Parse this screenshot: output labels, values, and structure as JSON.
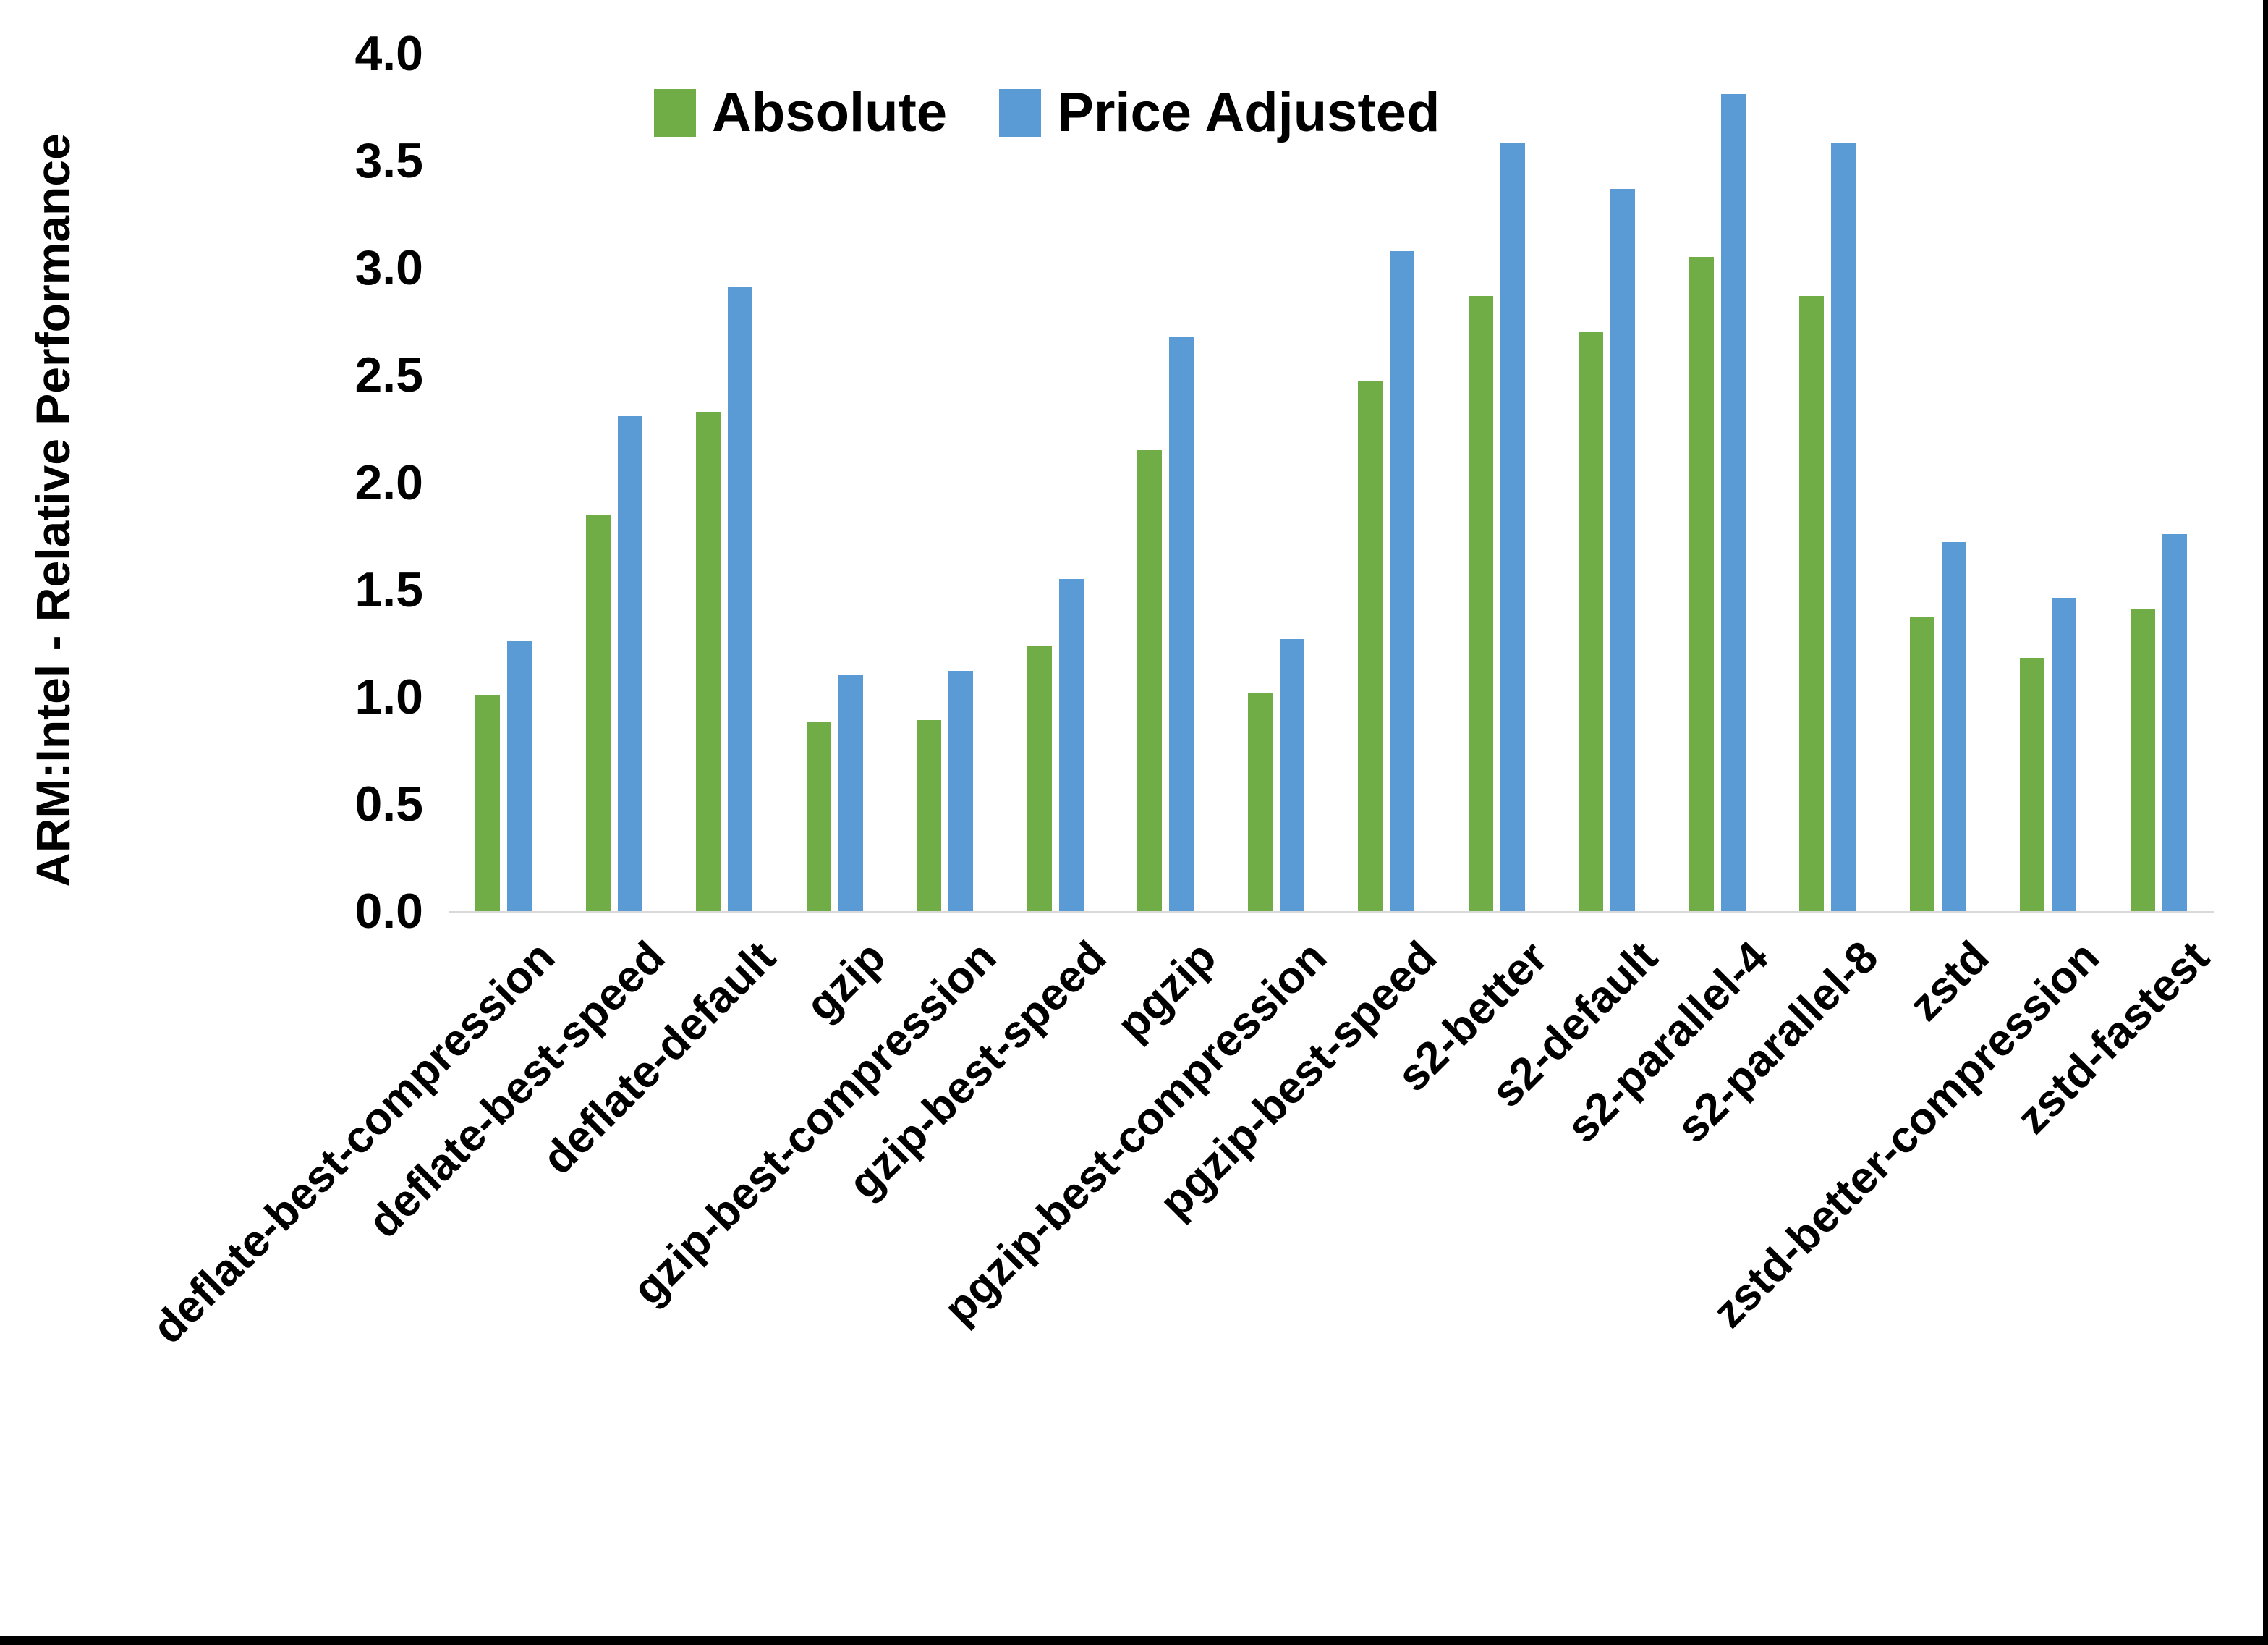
{
  "y_axis": {
    "title": "ARM:Intel - Relative Performance",
    "tick_labels": [
      "0.0",
      "0.5",
      "1.0",
      "1.5",
      "2.0",
      "2.5",
      "3.0",
      "3.5",
      "4.0"
    ]
  },
  "legend": {
    "items": [
      {
        "label": "Absolute",
        "color": "#70AD47"
      },
      {
        "label": "Price Adjusted",
        "color": "#5B9BD5"
      }
    ]
  },
  "colors": {
    "absolute_green": "#70AD47",
    "price_adjusted_blue": "#5B9BD5",
    "axis_line": "#D9D9D9",
    "text": "#000000",
    "frame": "#000000"
  },
  "chart_data": {
    "type": "bar",
    "title": "",
    "xlabel": "",
    "ylabel": "ARM:Intel - Relative Performance",
    "ylim": [
      0,
      4
    ],
    "ytick_step": 0.5,
    "grid": false,
    "legend_position": "top-center",
    "categories": [
      "deflate-best-compression",
      "deflate-best-speed",
      "deflate-default",
      "gzip",
      "gzip-best-compression",
      "gzip-best-speed",
      "pgzip",
      "pgzip-best-compression",
      "pgzip-best-speed",
      "s2-better",
      "s2-default",
      "s2-parallel-4",
      "s2-parallel-8",
      "zstd",
      "zstd-better-compression",
      "zstd-fastest"
    ],
    "series": [
      {
        "name": "Absolute",
        "color": "#70AD47",
        "values": [
          1.01,
          1.85,
          2.33,
          0.88,
          0.89,
          1.24,
          2.15,
          1.02,
          2.47,
          2.87,
          2.7,
          3.05,
          2.87,
          1.37,
          1.18,
          1.41
        ]
      },
      {
        "name": "Price Adjusted",
        "color": "#5B9BD5",
        "values": [
          1.26,
          2.31,
          2.91,
          1.1,
          1.12,
          1.55,
          2.68,
          1.27,
          3.08,
          3.58,
          3.37,
          3.81,
          3.58,
          1.72,
          1.46,
          1.76
        ]
      }
    ]
  }
}
